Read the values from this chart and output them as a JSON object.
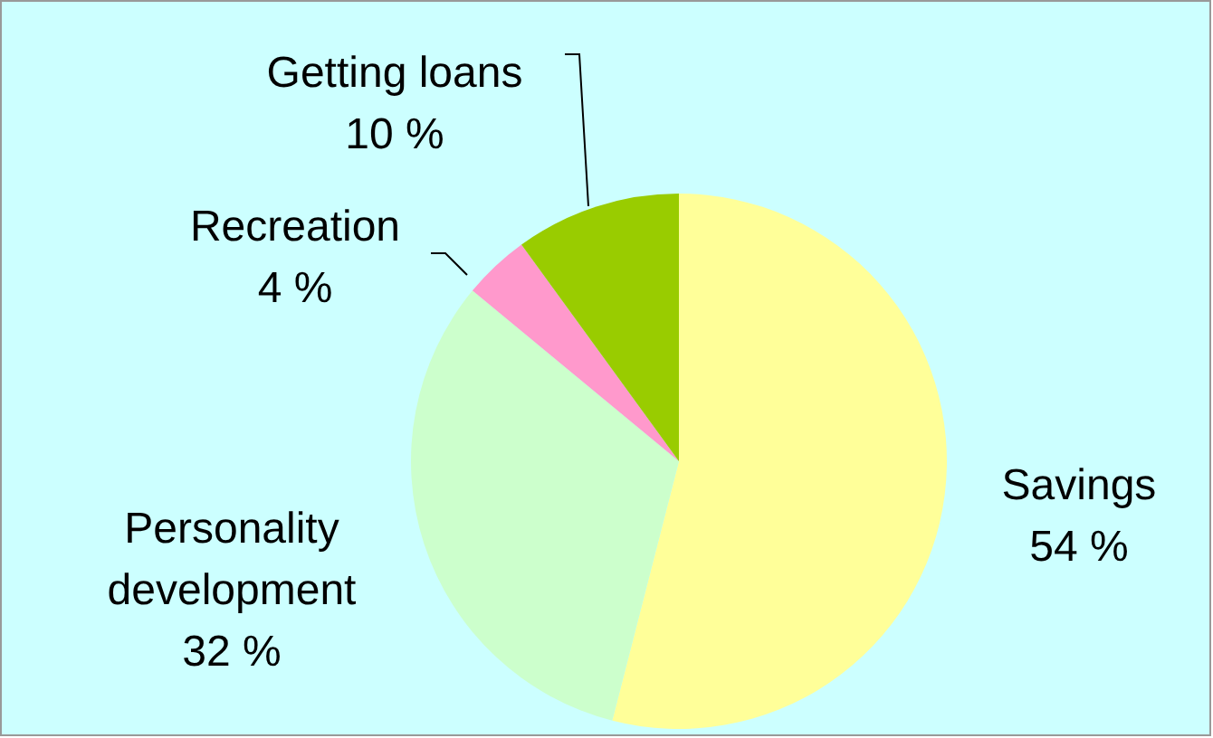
{
  "chart_data": {
    "type": "pie",
    "categories": [
      "Savings",
      "Personality development",
      "Recreation",
      "Getting loans"
    ],
    "values": [
      54,
      32,
      4,
      10
    ],
    "value_labels": [
      "54 %",
      "32 %",
      "4 %",
      "10 %"
    ],
    "colors": [
      "#ffff99",
      "#ccffcc",
      "#ff99cc",
      "#99cc00"
    ]
  }
}
